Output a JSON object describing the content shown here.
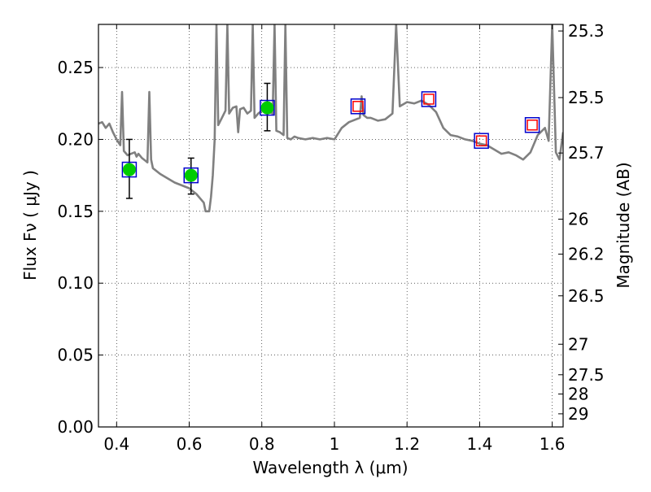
{
  "chart_data": {
    "type": "scatter",
    "title": "",
    "xlabel": "Wavelength  λ (μm)",
    "ylabel": "Flux  Fν  ( μJy )",
    "ylabel_right": "Magnitude (AB)",
    "xlim": [
      0.35,
      1.63
    ],
    "ylim": [
      0.0,
      0.28
    ],
    "grid": true,
    "x_ticks": [
      0.4,
      0.6,
      0.8,
      1.0,
      1.2,
      1.4,
      1.6
    ],
    "x_tick_labels": [
      "0.4",
      "0.6",
      "0.8",
      "1",
      "1.2",
      "1.4",
      "1.6"
    ],
    "y_ticks": [
      0.0,
      0.05,
      0.1,
      0.15,
      0.2,
      0.25
    ],
    "y_tick_labels": [
      "0.00",
      "0.05",
      "0.10",
      "0.15",
      "0.20",
      "0.25"
    ],
    "right_ticks": [
      {
        "label": "25.3",
        "mag": 25.3
      },
      {
        "label": "25.5",
        "mag": 25.5
      },
      {
        "label": "25.7",
        "mag": 25.7
      },
      {
        "label": "26",
        "mag": 26.0
      },
      {
        "label": "26.2",
        "mag": 26.2
      },
      {
        "label": "26.5",
        "mag": 26.5
      },
      {
        "label": "27",
        "mag": 27.0
      },
      {
        "label": "27.5",
        "mag": 27.5
      },
      {
        "label": "28",
        "mag": 28.0
      },
      {
        "label": "29",
        "mag": 29.0
      }
    ],
    "series": [
      {
        "kind": "line",
        "color": "#808080",
        "x": [
          0.35,
          0.36,
          0.37,
          0.38,
          0.39,
          0.4,
          0.41,
          0.415,
          0.42,
          0.43,
          0.44,
          0.45,
          0.455,
          0.46,
          0.47,
          0.48,
          0.485,
          0.49,
          0.495,
          0.5,
          0.52,
          0.54,
          0.56,
          0.58,
          0.6,
          0.62,
          0.64,
          0.645,
          0.655,
          0.66,
          0.665,
          0.67,
          0.675,
          0.68,
          0.69,
          0.7,
          0.705,
          0.71,
          0.72,
          0.73,
          0.735,
          0.74,
          0.75,
          0.76,
          0.77,
          0.775,
          0.78,
          0.79,
          0.8,
          0.81,
          0.82,
          0.83,
          0.835,
          0.84,
          0.85,
          0.86,
          0.865,
          0.87,
          0.88,
          0.89,
          0.9,
          0.92,
          0.94,
          0.96,
          0.98,
          1.0,
          1.02,
          1.04,
          1.06,
          1.07,
          1.075,
          1.08,
          1.09,
          1.1,
          1.12,
          1.14,
          1.16,
          1.17,
          1.18,
          1.2,
          1.22,
          1.24,
          1.26,
          1.28,
          1.3,
          1.32,
          1.34,
          1.36,
          1.38,
          1.4,
          1.42,
          1.44,
          1.46,
          1.48,
          1.5,
          1.52,
          1.54,
          1.56,
          1.58,
          1.59,
          1.6,
          1.61,
          1.62,
          1.63
        ],
        "y": [
          0.211,
          0.212,
          0.208,
          0.211,
          0.205,
          0.2,
          0.196,
          0.233,
          0.192,
          0.189,
          0.19,
          0.191,
          0.188,
          0.19,
          0.187,
          0.185,
          0.184,
          0.233,
          0.186,
          0.18,
          0.176,
          0.173,
          0.17,
          0.168,
          0.166,
          0.162,
          0.156,
          0.15,
          0.15,
          0.16,
          0.175,
          0.2,
          0.28,
          0.21,
          0.215,
          0.22,
          0.28,
          0.218,
          0.222,
          0.223,
          0.205,
          0.221,
          0.222,
          0.218,
          0.22,
          0.28,
          0.215,
          0.218,
          0.22,
          0.222,
          0.219,
          0.218,
          0.28,
          0.206,
          0.205,
          0.203,
          0.28,
          0.201,
          0.2,
          0.202,
          0.201,
          0.2,
          0.201,
          0.2,
          0.201,
          0.2,
          0.208,
          0.212,
          0.214,
          0.215,
          0.23,
          0.217,
          0.215,
          0.215,
          0.213,
          0.214,
          0.218,
          0.28,
          0.223,
          0.226,
          0.225,
          0.227,
          0.224,
          0.219,
          0.208,
          0.203,
          0.202,
          0.2,
          0.199,
          0.197,
          0.196,
          0.193,
          0.19,
          0.191,
          0.189,
          0.186,
          0.191,
          0.203,
          0.208,
          0.199,
          0.28,
          0.191,
          0.186,
          0.205
        ]
      },
      {
        "kind": "points",
        "name": "",
        "marker": "filled-circle-in-square",
        "x": [
          0.435,
          0.605,
          0.815
        ],
        "y": [
          0.179,
          0.175,
          0.222
        ],
        "err_low": [
          0.159,
          0.162,
          0.206
        ],
        "err_high": [
          0.2,
          0.187,
          0.239
        ],
        "fill_color": "#00cc00",
        "box_color": "#0000cc",
        "err_color": "#000000"
      },
      {
        "kind": "points",
        "name": "",
        "marker": "open-square-in-square",
        "x": [
          1.065,
          1.26,
          1.405,
          1.545
        ],
        "y": [
          0.223,
          0.228,
          0.199,
          0.21
        ],
        "inner_color": "#ff0000",
        "box_color": "#0000cc"
      }
    ]
  }
}
